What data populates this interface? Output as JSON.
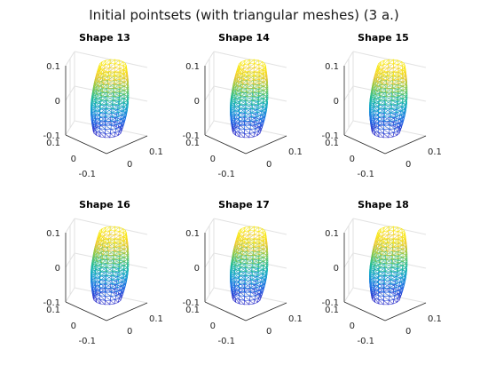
{
  "figure": {
    "title": "Initial pointsets (with triangular meshes) (3 a.)"
  },
  "chart_data": [
    {
      "type": "mesh3d",
      "title": "Shape 13",
      "zlim": [
        -0.1,
        0.1
      ],
      "xlim": [
        -0.1,
        0.1
      ],
      "ylim": [
        -0.1,
        0.1
      ],
      "z_ticks": [
        "0.1",
        "0",
        "-0.1"
      ],
      "x_ticks": [
        "0.1",
        "0",
        "-0.1"
      ],
      "y_ticks": [
        "0",
        "0.1"
      ],
      "colormap": "parula"
    },
    {
      "type": "mesh3d",
      "title": "Shape 14",
      "zlim": [
        -0.1,
        0.1
      ],
      "xlim": [
        -0.1,
        0.1
      ],
      "ylim": [
        -0.1,
        0.1
      ],
      "z_ticks": [
        "0.1",
        "0",
        "-0.1"
      ],
      "x_ticks": [
        "0.1",
        "0",
        "-0.1"
      ],
      "y_ticks": [
        "0",
        "0.1"
      ],
      "colormap": "parula"
    },
    {
      "type": "mesh3d",
      "title": "Shape 15",
      "zlim": [
        -0.1,
        0.1
      ],
      "xlim": [
        -0.1,
        0.1
      ],
      "ylim": [
        -0.1,
        0.1
      ],
      "z_ticks": [
        "0.1",
        "0",
        "-0.1"
      ],
      "x_ticks": [
        "0.1",
        "0",
        "-0.1"
      ],
      "y_ticks": [
        "0",
        "0.1"
      ],
      "colormap": "parula"
    },
    {
      "type": "mesh3d",
      "title": "Shape 16",
      "zlim": [
        -0.1,
        0.1
      ],
      "xlim": [
        -0.1,
        0.1
      ],
      "ylim": [
        -0.1,
        0.1
      ],
      "z_ticks": [
        "0.1",
        "0",
        "-0.1"
      ],
      "x_ticks": [
        "0.1",
        "0",
        "-0.1"
      ],
      "y_ticks": [
        "0",
        "0.1"
      ],
      "colormap": "parula"
    },
    {
      "type": "mesh3d",
      "title": "Shape 17",
      "zlim": [
        -0.1,
        0.1
      ],
      "xlim": [
        -0.1,
        0.1
      ],
      "ylim": [
        -0.1,
        0.1
      ],
      "z_ticks": [
        "0.1",
        "0",
        "-0.1"
      ],
      "x_ticks": [
        "0.1",
        "0",
        "-0.1"
      ],
      "y_ticks": [
        "0",
        "0.1"
      ],
      "colormap": "parula"
    },
    {
      "type": "mesh3d",
      "title": "Shape 18",
      "zlim": [
        -0.1,
        0.1
      ],
      "xlim": [
        -0.1,
        0.1
      ],
      "ylim": [
        -0.1,
        0.1
      ],
      "z_ticks": [
        "0.1",
        "0",
        "-0.1"
      ],
      "x_ticks": [
        "0.1",
        "0",
        "-0.1"
      ],
      "y_ticks": [
        "0",
        "0.1"
      ],
      "colormap": "parula"
    }
  ]
}
